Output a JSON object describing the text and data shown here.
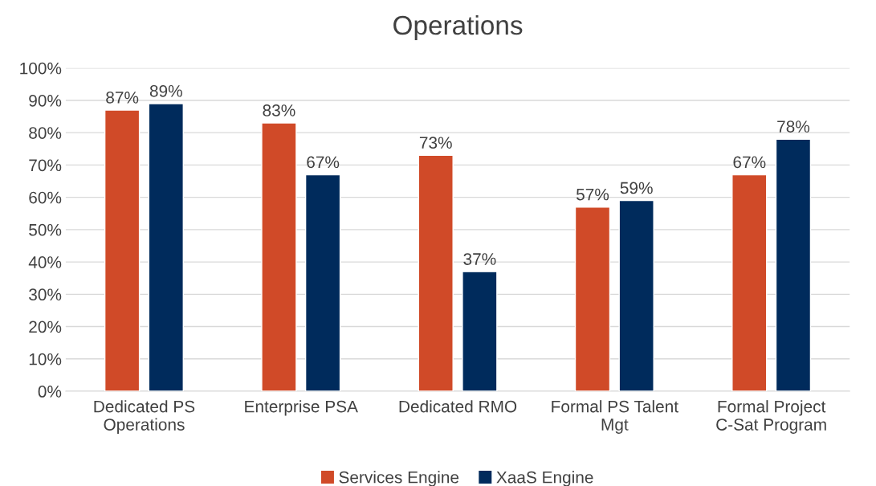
{
  "chart_data": {
    "type": "bar",
    "title": "Operations",
    "categories": [
      "Dedicated PS Operations",
      "Enterprise PSA",
      "Dedicated RMO",
      "Formal PS Talent Mgt",
      "Formal Project C-Sat Program"
    ],
    "series": [
      {
        "name": "Services Engine",
        "color": "#d04a28",
        "values": [
          87,
          83,
          73,
          57,
          67
        ],
        "value_labels": [
          "87%",
          "83%",
          "73%",
          "57%",
          "67%"
        ]
      },
      {
        "name": "XaaS Engine",
        "color": "#002b5c",
        "values": [
          89,
          67,
          37,
          59,
          78
        ],
        "value_labels": [
          "89%",
          "67%",
          "37%",
          "59%",
          "78%"
        ]
      }
    ],
    "ylim": [
      0,
      100
    ],
    "yticks": [
      {
        "value": 0,
        "label": "0%"
      },
      {
        "value": 10,
        "label": "10%"
      },
      {
        "value": 20,
        "label": "20%"
      },
      {
        "value": 30,
        "label": "30%"
      },
      {
        "value": 40,
        "label": "40%"
      },
      {
        "value": 50,
        "label": "50%"
      },
      {
        "value": 60,
        "label": "60%"
      },
      {
        "value": 70,
        "label": "70%"
      },
      {
        "value": 80,
        "label": "80%"
      },
      {
        "value": 90,
        "label": "90%"
      },
      {
        "value": 100,
        "label": "100%"
      }
    ],
    "grid": "y",
    "legend": "bottom"
  }
}
